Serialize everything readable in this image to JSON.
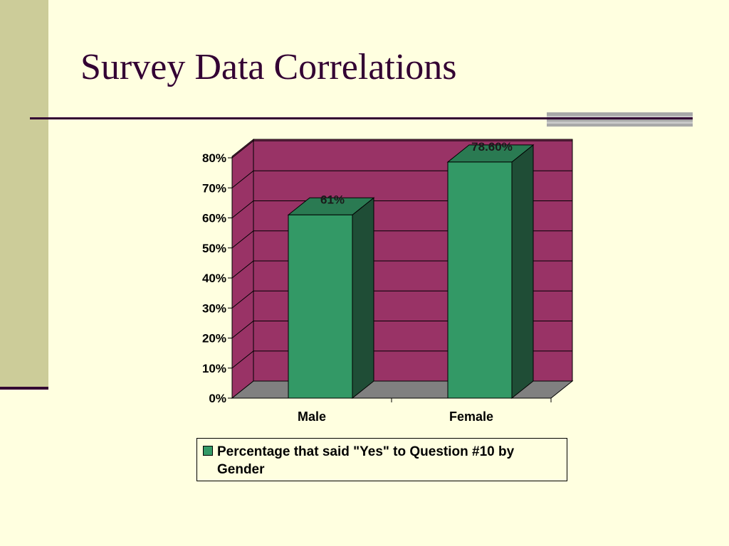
{
  "slide": {
    "title": "Survey Data Correlations"
  },
  "colors": {
    "background": "#ffffe0",
    "accent_bar": "#cccc99",
    "title_text": "#330033",
    "plot_wall": "#993366",
    "plot_floor": "#808080",
    "bar_front": "#339966",
    "bar_side": "#1f4d36",
    "bar_top": "#2a7a52"
  },
  "chart_data": {
    "type": "bar",
    "style": "3d-column",
    "categories": [
      "Male",
      "Female"
    ],
    "series": [
      {
        "name": "Percentage that said \"Yes\" to Question #10 by Gender",
        "values": [
          61,
          78.6
        ],
        "data_labels": [
          "61%",
          "78.60%"
        ],
        "color": "#339966"
      }
    ],
    "title": "",
    "xlabel": "",
    "ylabel": "",
    "ylim": [
      0,
      80
    ],
    "yticks": [
      "0%",
      "10%",
      "20%",
      "30%",
      "40%",
      "50%",
      "60%",
      "70%",
      "80%"
    ],
    "grid": true,
    "legend_position": "bottom"
  }
}
